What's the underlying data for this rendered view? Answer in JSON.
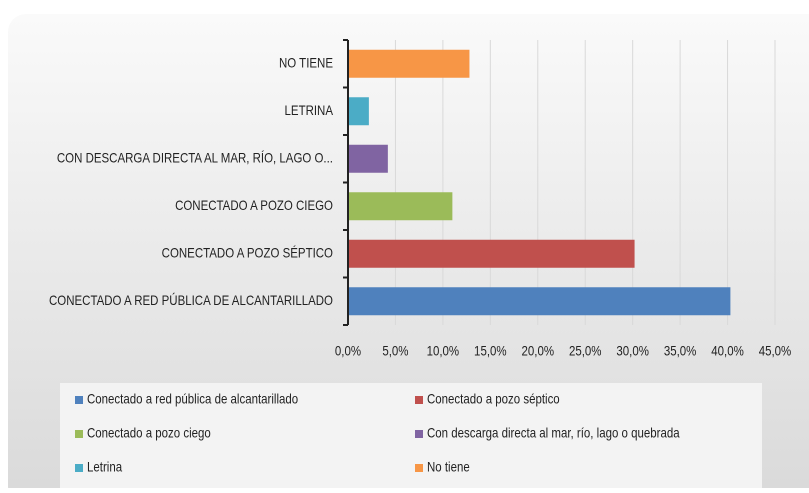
{
  "chart_data": {
    "type": "bar",
    "orientation": "horizontal",
    "categories": [
      "CONECTADO A RED PÚBLICA DE ALCANTARILLADO",
      "CONECTADO A POZO SÉPTICO",
      "CONECTADO A POZO CIEGO",
      "CON DESCARGA DIRECTA AL MAR, RÍO, LAGO O...",
      "LETRINA",
      "NO TIENE"
    ],
    "values": [
      40.3,
      30.2,
      11.0,
      4.2,
      2.2,
      12.8
    ],
    "colors": [
      "#4f81bd",
      "#c0504d",
      "#9bbb59",
      "#8064a2",
      "#4bacc6",
      "#f79646"
    ],
    "legend": [
      "Conectado a red pública de alcantarillado",
      "Conectado a pozo séptico",
      "Conectado a pozo ciego",
      "Con descarga directa al mar, río, lago o quebrada",
      "Letrina",
      "No tiene"
    ],
    "xlim": [
      0,
      45
    ],
    "xticks": [
      {
        "value": 0,
        "label": "0,0%"
      },
      {
        "value": 5,
        "label": "5,0%"
      },
      {
        "value": 10,
        "label": "10,0%"
      },
      {
        "value": 15,
        "label": "15,0%"
      },
      {
        "value": 20,
        "label": "20,0%"
      },
      {
        "value": 25,
        "label": "25,0%"
      },
      {
        "value": 30,
        "label": "30,0%"
      },
      {
        "value": 35,
        "label": "35,0%"
      },
      {
        "value": 40,
        "label": "40,0%"
      },
      {
        "value": 45,
        "label": "45,0%"
      }
    ],
    "grid": true
  }
}
